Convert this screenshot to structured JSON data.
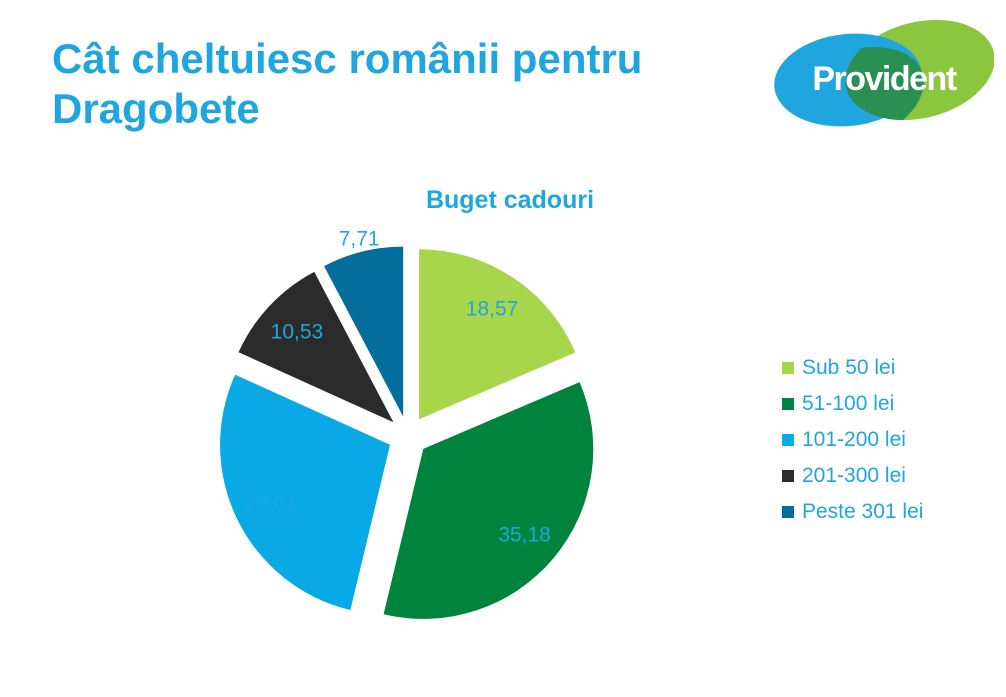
{
  "slide": {
    "title_line1": "Cât cheltuiesc românii pentru",
    "title_line2": "Dragobete",
    "logo_text": "Provident"
  },
  "colors": {
    "title": "#1fa6df",
    "label": "#1fa6df",
    "logo_blue": "#1fa6df",
    "logo_green": "#8cc63f"
  },
  "chart_data": {
    "type": "pie",
    "title": "Buget cadouri",
    "categories": [
      "Sub 50 lei",
      "51-100 lei",
      "101-200 lei",
      "201-300 lei",
      "Peste 301 lei"
    ],
    "values": [
      18.57,
      35.18,
      28.01,
      10.53,
      7.71
    ],
    "value_labels": [
      "18,57",
      "35,18",
      "28,01",
      "10,53",
      "7,71"
    ],
    "colors": [
      "#a8d64a",
      "#00843d",
      "#09a9e6",
      "#2b2b2b",
      "#036d9b"
    ],
    "exploded": true,
    "start_angle": "12 o'clock",
    "direction": "clockwise",
    "legend_position": "right"
  }
}
